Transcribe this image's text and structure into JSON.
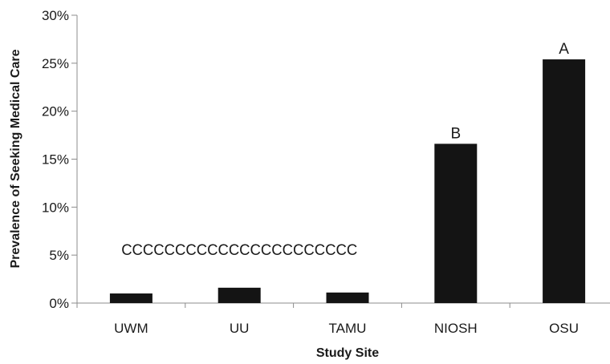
{
  "chart_data": {
    "type": "bar",
    "title": "",
    "xlabel": "Study Site",
    "ylabel": "Prevalence of Seeking Medical Care",
    "categories": [
      "UWM",
      "UU",
      "TAMU",
      "NIOSH",
      "OSU"
    ],
    "values": [
      1.0,
      1.6,
      1.1,
      16.6,
      25.4
    ],
    "value_unit": "%",
    "ylim": [
      0,
      30
    ],
    "yticks": [
      "0%",
      "5%",
      "10%",
      "15%",
      "20%",
      "25%",
      "30%"
    ],
    "grid": false,
    "legend": "none",
    "bar_color": "#141414",
    "annotations": [
      {
        "text": "CCCCCCCCCCCCCCCCCCCCCC",
        "x_from": "UWM",
        "x_to": "TAMU",
        "y": 5.6
      },
      {
        "text": "B",
        "category": "NIOSH"
      },
      {
        "text": "A",
        "category": "OSU"
      }
    ]
  }
}
